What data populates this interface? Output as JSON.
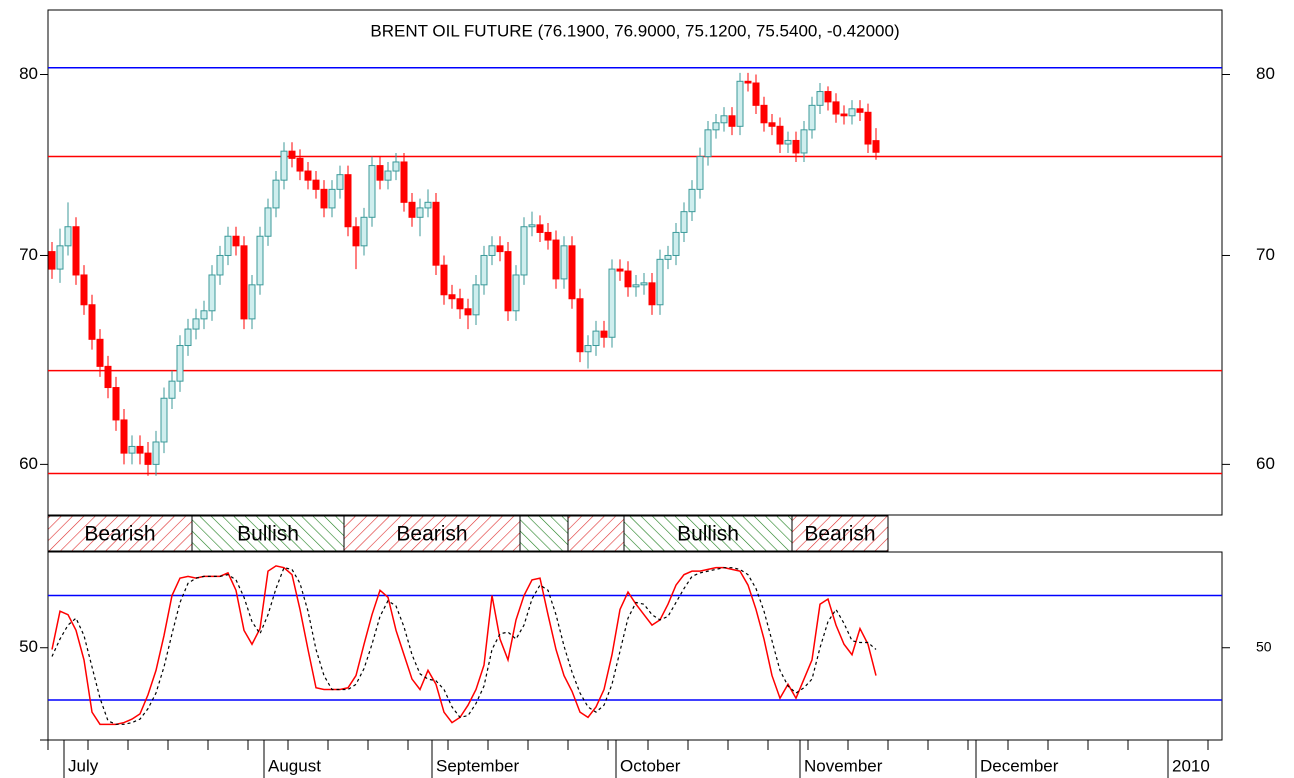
{
  "chart_data": [
    {
      "type": "candlestick",
      "title": "BRENT OIL FUTURE (76.1900, 76.9000, 75.1200, 75.5400, -0.42000)",
      "xlim": [
        -0.5,
        146.25
      ],
      "xticks": [
        {
          "value": 2,
          "label": "July"
        },
        {
          "value": 27,
          "label": "August"
        },
        {
          "value": 48,
          "label": "September"
        },
        {
          "value": 71,
          "label": "October"
        },
        {
          "value": 94,
          "label": "November"
        },
        {
          "value": 116,
          "label": "December"
        },
        {
          "value": 140,
          "label": "2010"
        }
      ],
      "ylim": [
        57.8,
        83.9
      ],
      "ylog": true,
      "yticks": [
        60,
        70,
        80
      ],
      "up_color": "#3c9a9a",
      "down_color": "#ff0000",
      "hlines": [
        {
          "value": 80.4,
          "color": "#0000ff"
        },
        {
          "value": 75.3,
          "color": "#ff0000"
        },
        {
          "value": 64.3,
          "color": "#ff0000"
        },
        {
          "value": 59.6,
          "color": "#ff0000"
        }
      ],
      "open": [
        70.2,
        69.3,
        70.5,
        71.5,
        69.0,
        67.5,
        65.8,
        64.5,
        63.5,
        62.0,
        60.5,
        60.8,
        60.5,
        60.0,
        61.0,
        63.0,
        63.8,
        65.5,
        66.3,
        66.8,
        67.2,
        69.0,
        70.0,
        71.0,
        70.5,
        66.8,
        68.5,
        71.0,
        72.5,
        74.0,
        75.6,
        75.2,
        74.5,
        74.0,
        73.5,
        72.5,
        73.5,
        74.3,
        71.5,
        70.5,
        72.0,
        74.8,
        74.0,
        74.5,
        75.0,
        72.8,
        72.0,
        72.5,
        72.8,
        69.5,
        68.0,
        67.8,
        67.3,
        67.0,
        68.5,
        70.0,
        70.5,
        70.2,
        67.2,
        69.0,
        71.5,
        71.6,
        71.2,
        70.8,
        68.8,
        70.5,
        67.8,
        65.2,
        65.5,
        66.2,
        65.9,
        69.3,
        69.2,
        68.4,
        68.5,
        68.6,
        67.5,
        69.8,
        70.0,
        71.2,
        72.3,
        73.5,
        75.3,
        76.8,
        77.2,
        77.6,
        77.0,
        79.6,
        79.5,
        78.2,
        77.2,
        77.0,
        76.0,
        76.2,
        75.5,
        76.8,
        78.2,
        79.0,
        78.4,
        77.7,
        77.6,
        78.0,
        77.8,
        76.19
      ],
      "high": [
        70.7,
        71.4,
        72.8,
        72.0,
        69.5,
        68.0,
        66.3,
        65.0,
        64.0,
        62.5,
        61.3,
        61.3,
        61.0,
        61.5,
        63.5,
        64.3,
        66.0,
        66.8,
        67.3,
        67.7,
        69.5,
        70.5,
        71.5,
        71.5,
        71.0,
        69.0,
        71.5,
        73.0,
        74.5,
        76.1,
        76.1,
        75.7,
        75.0,
        74.5,
        74.0,
        74.0,
        74.8,
        74.8,
        72.0,
        72.5,
        75.3,
        75.3,
        75.0,
        75.5,
        75.5,
        73.3,
        73.0,
        73.5,
        73.3,
        70.0,
        68.5,
        68.3,
        67.8,
        69.0,
        70.5,
        71.0,
        71.0,
        70.7,
        69.5,
        72.0,
        72.3,
        72.1,
        71.7,
        71.3,
        71.0,
        71.0,
        68.3,
        66.0,
        66.7,
        66.7,
        69.8,
        69.8,
        69.7,
        69.0,
        69.1,
        69.1,
        70.3,
        70.5,
        71.7,
        72.8,
        74.0,
        75.8,
        77.3,
        77.7,
        78.1,
        78.1,
        80.1,
        80.1,
        80.0,
        78.7,
        77.7,
        77.5,
        76.7,
        76.7,
        77.3,
        78.7,
        79.5,
        79.3,
        78.9,
        78.2,
        78.5,
        78.5,
        78.3,
        76.9
      ],
      "low": [
        68.8,
        68.6,
        70.0,
        68.5,
        67.0,
        65.3,
        64.0,
        63.0,
        61.5,
        60.0,
        60.0,
        60.0,
        59.5,
        59.5,
        60.5,
        62.5,
        63.3,
        65.0,
        65.8,
        66.3,
        66.7,
        68.5,
        69.5,
        70.0,
        66.3,
        66.3,
        68.0,
        70.5,
        72.0,
        73.5,
        74.7,
        74.0,
        73.5,
        73.0,
        72.0,
        72.0,
        73.0,
        71.0,
        69.3,
        70.0,
        71.5,
        73.5,
        73.5,
        74.0,
        72.3,
        71.5,
        71.0,
        72.0,
        69.0,
        67.5,
        67.3,
        66.8,
        66.3,
        66.5,
        68.0,
        69.5,
        69.7,
        66.7,
        66.7,
        68.5,
        71.0,
        70.7,
        70.3,
        68.3,
        68.3,
        67.3,
        64.7,
        64.4,
        65.0,
        65.4,
        65.4,
        68.7,
        67.9,
        67.9,
        68.0,
        67.0,
        67.0,
        69.3,
        69.5,
        70.7,
        71.8,
        73.0,
        74.8,
        76.3,
        76.7,
        76.5,
        76.5,
        79.0,
        77.7,
        76.7,
        76.5,
        75.5,
        75.5,
        75.0,
        75.0,
        76.3,
        77.7,
        77.9,
        77.2,
        77.1,
        77.1,
        77.3,
        75.5,
        75.12
      ],
      "close": [
        69.3,
        70.5,
        71.5,
        69.0,
        67.5,
        65.8,
        64.5,
        63.5,
        62.0,
        60.5,
        60.8,
        60.5,
        60.0,
        61.0,
        63.0,
        63.8,
        65.5,
        66.3,
        66.8,
        67.2,
        69.0,
        70.0,
        71.0,
        70.5,
        66.8,
        68.5,
        71.0,
        72.5,
        74.0,
        75.6,
        75.2,
        74.5,
        74.0,
        73.5,
        72.5,
        73.5,
        74.3,
        71.5,
        70.5,
        72.0,
        74.8,
        74.0,
        74.5,
        75.0,
        72.8,
        72.0,
        72.5,
        72.8,
        69.5,
        68.0,
        67.8,
        67.3,
        67.0,
        68.5,
        70.0,
        70.5,
        70.2,
        67.2,
        69.0,
        71.5,
        71.6,
        71.2,
        70.8,
        68.8,
        70.5,
        67.8,
        65.2,
        65.5,
        66.2,
        65.9,
        69.3,
        69.2,
        68.4,
        68.5,
        68.6,
        67.5,
        69.8,
        70.0,
        71.2,
        72.3,
        73.5,
        75.3,
        76.8,
        77.2,
        77.6,
        77.0,
        79.6,
        79.5,
        78.2,
        77.2,
        77.0,
        76.0,
        76.2,
        75.5,
        76.8,
        78.2,
        79.0,
        78.4,
        77.7,
        77.6,
        78.0,
        77.8,
        76.0,
        75.54
      ],
      "signals": [
        {
          "label": "Bearish",
          "color": "#e03030",
          "start": 0,
          "end": 18
        },
        {
          "label": "Bullish",
          "color": "#208020",
          "start": 18,
          "end": 37
        },
        {
          "label": "Bearish",
          "color": "#e03030",
          "start": 37,
          "end": 59
        },
        {
          "label": null,
          "color": "#208020",
          "start": 59,
          "end": 65
        },
        {
          "label": null,
          "color": "#e03030",
          "start": 65,
          "end": 72
        },
        {
          "label": "Bullish",
          "color": "#208020",
          "start": 72,
          "end": 93
        },
        {
          "label": "Bearish",
          "color": "#e03030",
          "start": 93,
          "end": 105
        }
      ]
    },
    {
      "type": "line",
      "ylim": [
        -3,
        105
      ],
      "yticks": [
        50
      ],
      "hlines": [
        {
          "value": 80,
          "color": "#0000ff"
        },
        {
          "value": 20,
          "color": "#0000ff"
        }
      ],
      "series": [
        {
          "color": "#ff0000",
          "dashed": false,
          "values": [
            49,
            71,
            69,
            60,
            43,
            13,
            6,
            6,
            6,
            7,
            9,
            12,
            23,
            37,
            57,
            80,
            90,
            91,
            90,
            91,
            91,
            91,
            93,
            83,
            60,
            52,
            61,
            94,
            97,
            96,
            92,
            72,
            49,
            27,
            26,
            26,
            26,
            27,
            34,
            52,
            69,
            83,
            79,
            60,
            46,
            32,
            26,
            37,
            29,
            13,
            7,
            10,
            17,
            26,
            40,
            80,
            55,
            43,
            66,
            80,
            89,
            90,
            69,
            49,
            34,
            25,
            13,
            10,
            16,
            26,
            46,
            72,
            82,
            75,
            69,
            63,
            66,
            75,
            86,
            92,
            94,
            94,
            95,
            96,
            96,
            95,
            94,
            86,
            72,
            55,
            34,
            21,
            29,
            21,
            32,
            43,
            75,
            78,
            63,
            52,
            46,
            61,
            52,
            34
          ]
        },
        {
          "color": "#000000",
          "dashed": true,
          "values": [
            45,
            55,
            63,
            67,
            57,
            39,
            21,
            8,
            6,
            6,
            7,
            9,
            15,
            24,
            39,
            58,
            76,
            87,
            90,
            91,
            91,
            91,
            92,
            89,
            79,
            65,
            58,
            69,
            84,
            96,
            95,
            87,
            71,
            49,
            34,
            26,
            26,
            26,
            29,
            38,
            52,
            68,
            77,
            74,
            62,
            46,
            35,
            32,
            31,
            26,
            16,
            10,
            11,
            18,
            28,
            49,
            58,
            59,
            55,
            63,
            78,
            86,
            83,
            69,
            51,
            36,
            24,
            16,
            13,
            17,
            29,
            48,
            67,
            76,
            75,
            69,
            66,
            68,
            76,
            84,
            91,
            93,
            94,
            95,
            96,
            96,
            95,
            92,
            84,
            71,
            54,
            37,
            28,
            24,
            27,
            32,
            50,
            65,
            72,
            64,
            54,
            53,
            53,
            49
          ]
        }
      ]
    }
  ]
}
